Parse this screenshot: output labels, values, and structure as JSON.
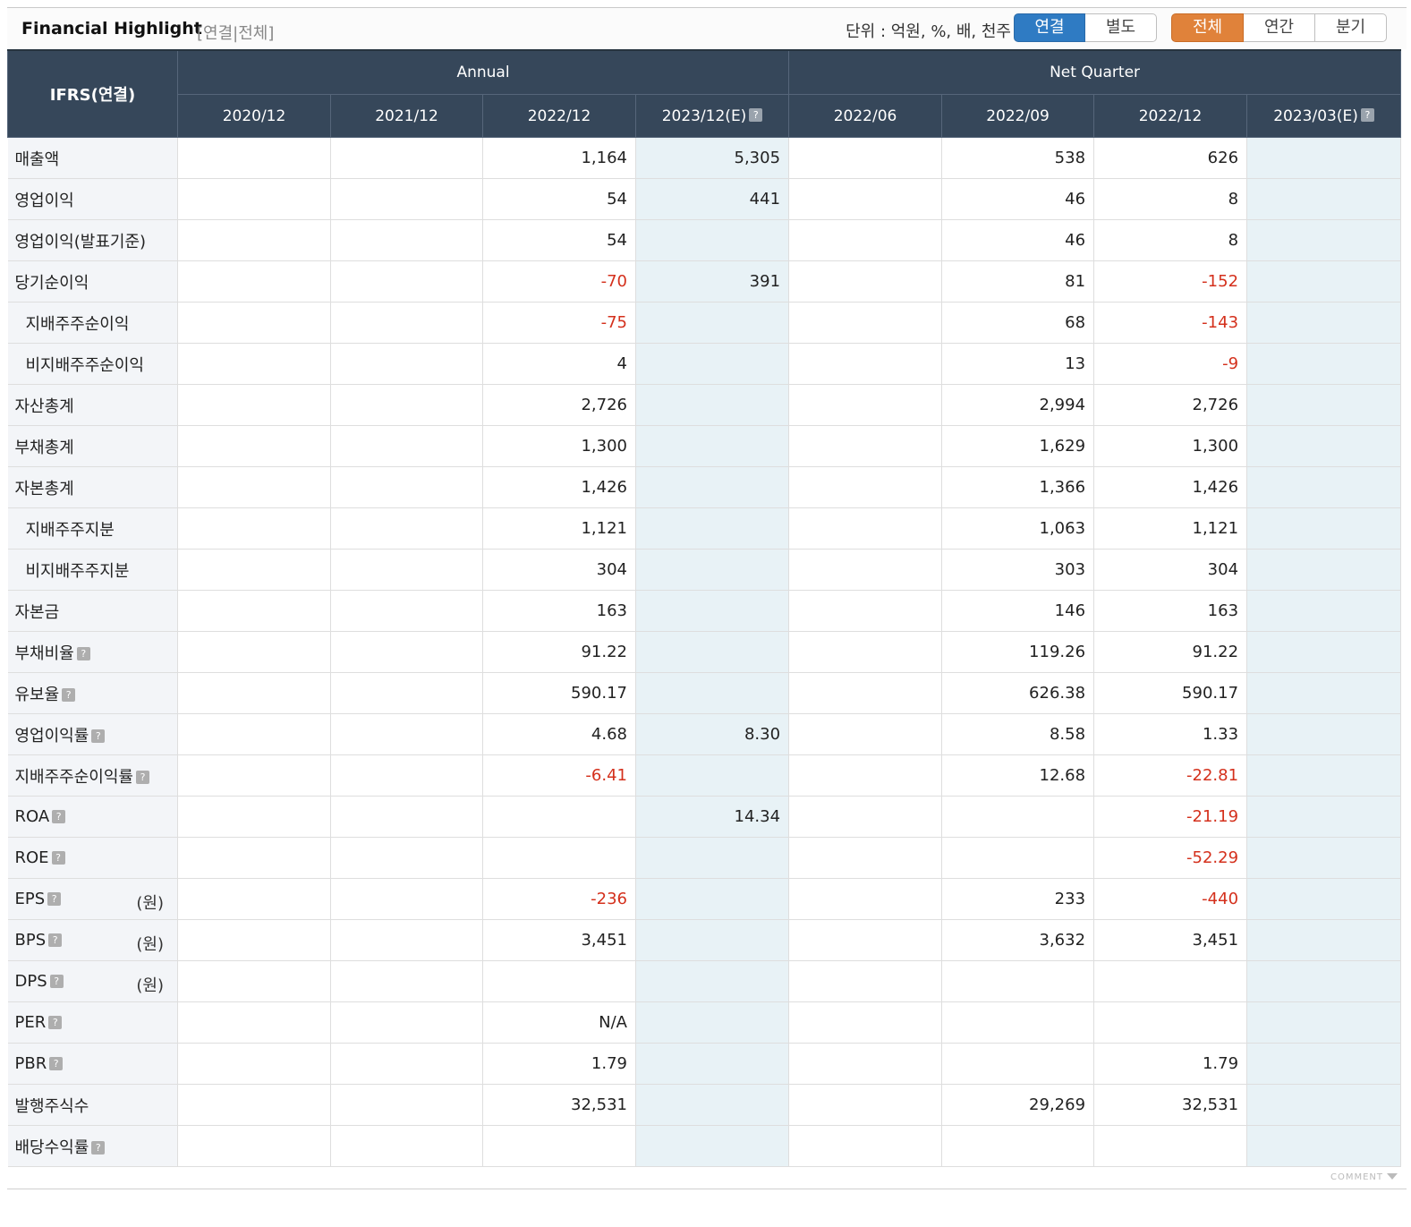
{
  "header": {
    "title": "Financial Highlight",
    "subtitle": "[연결|전체]",
    "unit": "단위 : 억원, %, 배, 천주",
    "scope_buttons": [
      "연결",
      "별도"
    ],
    "period_buttons": [
      "전체",
      "연간",
      "분기"
    ]
  },
  "colors": {
    "header_bg": "#36475a",
    "active_blue": "#2f7bc3",
    "active_orange": "#e0823a",
    "negative": "#d4301c",
    "estimate_bg": "#e8f2f6"
  },
  "table": {
    "corner": "IFRS(연결)",
    "groups": [
      "Annual",
      "Net Quarter"
    ],
    "columns": [
      "2020/12",
      "2021/12",
      "2022/12",
      "2023/12(E)",
      "2022/06",
      "2022/09",
      "2022/12",
      "2023/03(E)"
    ],
    "help_icon": "?",
    "rows": [
      {
        "label": "매출액",
        "values": [
          "",
          "",
          "1,164",
          "5,305",
          "",
          "538",
          "626",
          ""
        ]
      },
      {
        "label": "영업이익",
        "values": [
          "",
          "",
          "54",
          "441",
          "",
          "46",
          "8",
          ""
        ]
      },
      {
        "label": "영업이익(발표기준)",
        "values": [
          "",
          "",
          "54",
          "",
          "",
          "46",
          "8",
          ""
        ]
      },
      {
        "label": "당기순이익",
        "values": [
          "",
          "",
          "-70",
          "391",
          "",
          "81",
          "-152",
          ""
        ]
      },
      {
        "label": "지배주주순이익",
        "indent": true,
        "values": [
          "",
          "",
          "-75",
          "",
          "",
          "68",
          "-143",
          ""
        ]
      },
      {
        "label": "비지배주주순이익",
        "indent": true,
        "values": [
          "",
          "",
          "4",
          "",
          "",
          "13",
          "-9",
          ""
        ]
      },
      {
        "label": "자산총계",
        "values": [
          "",
          "",
          "2,726",
          "",
          "",
          "2,994",
          "2,726",
          ""
        ]
      },
      {
        "label": "부채총계",
        "values": [
          "",
          "",
          "1,300",
          "",
          "",
          "1,629",
          "1,300",
          ""
        ]
      },
      {
        "label": "자본총계",
        "values": [
          "",
          "",
          "1,426",
          "",
          "",
          "1,366",
          "1,426",
          ""
        ]
      },
      {
        "label": "지배주주지분",
        "indent": true,
        "values": [
          "",
          "",
          "1,121",
          "",
          "",
          "1,063",
          "1,121",
          ""
        ]
      },
      {
        "label": "비지배주주지분",
        "indent": true,
        "values": [
          "",
          "",
          "304",
          "",
          "",
          "303",
          "304",
          ""
        ]
      },
      {
        "label": "자본금",
        "values": [
          "",
          "",
          "163",
          "",
          "",
          "146",
          "163",
          ""
        ]
      },
      {
        "label": "부채비율",
        "help": true,
        "values": [
          "",
          "",
          "91.22",
          "",
          "",
          "119.26",
          "91.22",
          ""
        ]
      },
      {
        "label": "유보율",
        "help": true,
        "values": [
          "",
          "",
          "590.17",
          "",
          "",
          "626.38",
          "590.17",
          ""
        ]
      },
      {
        "label": "영업이익률",
        "help": true,
        "values": [
          "",
          "",
          "4.68",
          "8.30",
          "",
          "8.58",
          "1.33",
          ""
        ]
      },
      {
        "label": "지배주주순이익률",
        "help": true,
        "values": [
          "",
          "",
          "-6.41",
          "",
          "",
          "12.68",
          "-22.81",
          ""
        ]
      },
      {
        "label": "ROA",
        "help": true,
        "values": [
          "",
          "",
          "",
          "14.34",
          "",
          "",
          "-21.19",
          ""
        ]
      },
      {
        "label": "ROE",
        "help": true,
        "values": [
          "",
          "",
          "",
          "",
          "",
          "",
          "-52.29",
          ""
        ]
      },
      {
        "label": "EPS",
        "help": true,
        "unit": "(원)",
        "values": [
          "",
          "",
          "-236",
          "",
          "",
          "233",
          "-440",
          ""
        ]
      },
      {
        "label": "BPS",
        "help": true,
        "unit": "(원)",
        "values": [
          "",
          "",
          "3,451",
          "",
          "",
          "3,632",
          "3,451",
          ""
        ]
      },
      {
        "label": "DPS",
        "help": true,
        "unit": "(원)",
        "values": [
          "",
          "",
          "",
          "",
          "",
          "",
          "",
          ""
        ]
      },
      {
        "label": "PER",
        "help": true,
        "values": [
          "",
          "",
          "N/A",
          "",
          "",
          "",
          "",
          ""
        ]
      },
      {
        "label": "PBR",
        "help": true,
        "values": [
          "",
          "",
          "1.79",
          "",
          "",
          "",
          "1.79",
          ""
        ]
      },
      {
        "label": "발행주식수",
        "values": [
          "",
          "",
          "32,531",
          "",
          "",
          "29,269",
          "32,531",
          ""
        ]
      },
      {
        "label": "배당수익률",
        "help": true,
        "values": [
          "",
          "",
          "",
          "",
          "",
          "",
          "",
          ""
        ]
      }
    ]
  },
  "footer": {
    "comment": "COMMENT"
  }
}
